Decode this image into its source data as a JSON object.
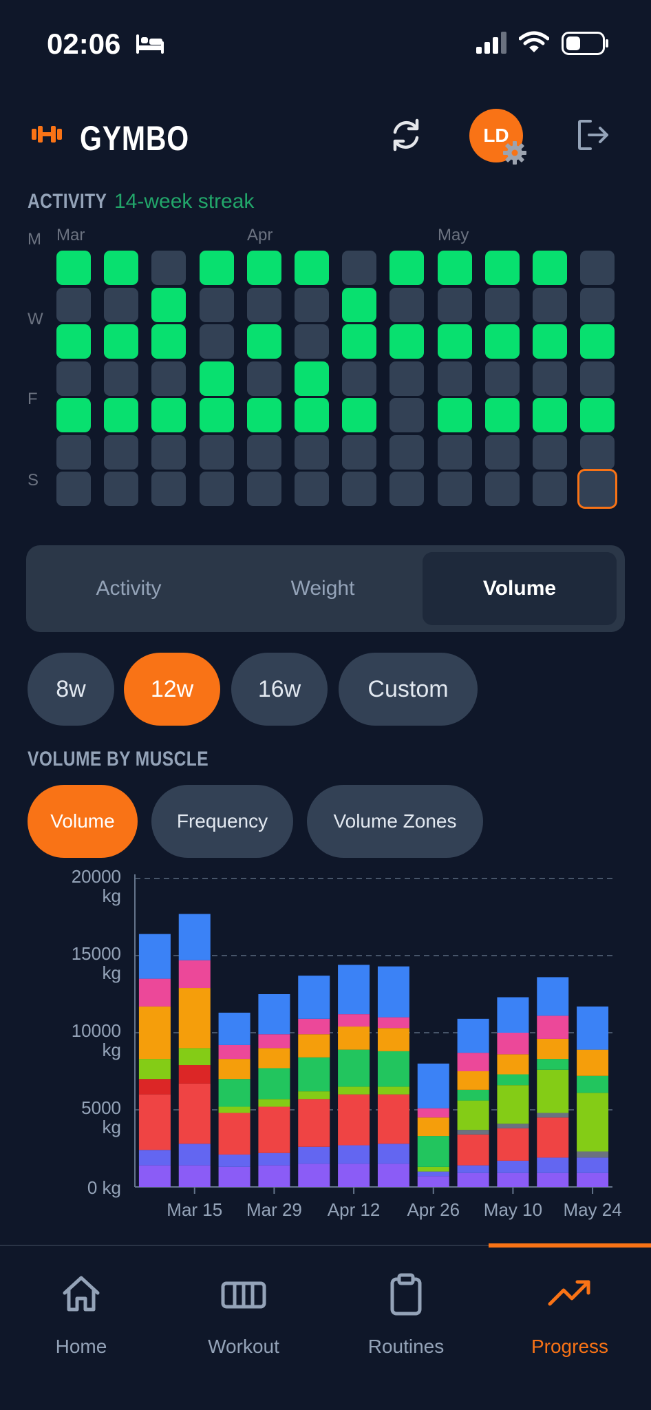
{
  "status_bar": {
    "time": "02:06"
  },
  "header": {
    "title": "GYMBO",
    "avatar_initials": "LD"
  },
  "activity": {
    "label": "ACTIVITY",
    "streak": "14-week streak",
    "months": [
      "Mar",
      "Apr",
      "May"
    ],
    "day_labels": [
      "M",
      "W",
      "F",
      "S"
    ],
    "grid": [
      [
        1,
        1,
        0,
        1,
        1,
        1,
        0,
        1,
        1,
        1,
        1,
        0
      ],
      [
        0,
        0,
        1,
        0,
        0,
        0,
        1,
        0,
        0,
        0,
        0,
        0
      ],
      [
        1,
        1,
        1,
        0,
        1,
        0,
        1,
        1,
        1,
        1,
        1,
        1
      ],
      [
        0,
        0,
        0,
        1,
        0,
        1,
        0,
        0,
        0,
        0,
        0,
        0
      ],
      [
        1,
        1,
        1,
        1,
        1,
        1,
        1,
        0,
        1,
        1,
        1,
        1
      ],
      [
        0,
        0,
        0,
        0,
        0,
        0,
        0,
        0,
        0,
        0,
        0,
        0
      ],
      [
        0,
        0,
        0,
        0,
        0,
        0,
        0,
        0,
        0,
        0,
        0,
        0
      ]
    ],
    "today_highlighted": "last cell of week 12, Sunday",
    "active_color": "#08e06f",
    "inactive_color": "#334155",
    "today_color": "#f97316"
  },
  "view_tabs": {
    "items": [
      "Activity",
      "Weight",
      "Volume"
    ],
    "selected": "Volume"
  },
  "range_pills": {
    "items": [
      "8w",
      "12w",
      "16w",
      "Custom"
    ],
    "selected": "12w"
  },
  "volume_section": {
    "title": "VOLUME BY MUSCLE",
    "metric_tabs": [
      "Volume",
      "Frequency",
      "Volume Zones"
    ],
    "selected_metric": "Volume"
  },
  "chart_data": {
    "type": "bar",
    "stacked": true,
    "title": "",
    "xlabel": "",
    "ylabel": "",
    "ylim": [
      0,
      20000
    ],
    "y_ticks": [
      "0 kg",
      "5000 kg",
      "10000 kg",
      "15000 kg",
      "20000 kg"
    ],
    "x_tick_labels": [
      "Mar 15",
      "Mar 29",
      "Apr 12",
      "Apr 26",
      "May 10",
      "May 24"
    ],
    "x_tick_positions": [
      1,
      3,
      5,
      7,
      9,
      11
    ],
    "categories": [
      "wk1",
      "wk2",
      "wk3",
      "wk4",
      "wk5",
      "wk6",
      "wk7",
      "wk8",
      "wk9",
      "wk10",
      "wk11",
      "wk12"
    ],
    "grid": "dashed horizontal",
    "series": [
      {
        "color": "#8b5cf6",
        "values": [
          1400,
          1400,
          1300,
          1400,
          1500,
          1500,
          1500,
          700,
          900,
          900,
          900,
          900
        ]
      },
      {
        "color": "#6366f1",
        "values": [
          1000,
          1400,
          800,
          800,
          1100,
          1200,
          1300,
          300,
          500,
          800,
          1000,
          1000
        ]
      },
      {
        "color": "#ef4444",
        "values": [
          3600,
          3900,
          2700,
          3000,
          3100,
          3300,
          3200,
          0,
          2000,
          2100,
          2600,
          0
        ]
      },
      {
        "color": "#dc2626",
        "values": [
          1000,
          1200,
          0,
          0,
          0,
          0,
          0,
          0,
          0,
          0,
          0,
          0
        ]
      },
      {
        "color": "#6b7280",
        "values": [
          0,
          0,
          0,
          0,
          0,
          0,
          0,
          0,
          300,
          300,
          300,
          400
        ]
      },
      {
        "color": "#84cc16",
        "values": [
          1300,
          1100,
          400,
          500,
          500,
          500,
          500,
          300,
          1900,
          2500,
          2800,
          3800
        ]
      },
      {
        "color": "#22c55e",
        "values": [
          0,
          0,
          1800,
          2000,
          2200,
          2400,
          2300,
          2000,
          700,
          700,
          700,
          1100
        ]
      },
      {
        "color": "#f59e0b",
        "values": [
          3400,
          3900,
          1300,
          1300,
          1500,
          1500,
          1500,
          1200,
          1200,
          1300,
          1300,
          1700
        ]
      },
      {
        "color": "#ec4899",
        "values": [
          1800,
          1800,
          900,
          900,
          1000,
          800,
          700,
          600,
          1200,
          1400,
          1500,
          0
        ]
      },
      {
        "color": "#3b82f6",
        "values": [
          2900,
          3000,
          2100,
          2600,
          2800,
          3200,
          3300,
          2900,
          2200,
          2300,
          2500,
          2800
        ]
      }
    ]
  },
  "tab_bar": {
    "items": [
      "Home",
      "Workout",
      "Routines",
      "Progress"
    ],
    "selected": "Progress"
  }
}
